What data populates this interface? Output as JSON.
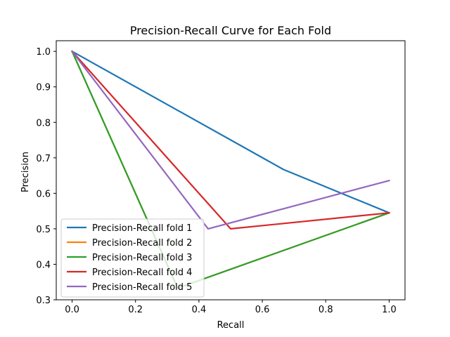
{
  "chart_data": {
    "type": "line",
    "title": "Precision-Recall Curve for Each Fold",
    "xlabel": "Recall",
    "ylabel": "Precision",
    "xlim": [
      -0.05,
      1.05
    ],
    "ylim": [
      0.3,
      1.03
    ],
    "xticks": [
      0.0,
      0.2,
      0.4,
      0.6,
      0.8,
      1.0
    ],
    "xtick_labels": [
      "0.0",
      "0.2",
      "0.4",
      "0.6",
      "0.8",
      "1.0"
    ],
    "yticks": [
      0.3,
      0.4,
      0.5,
      0.6,
      0.7,
      0.8,
      0.9,
      1.0
    ],
    "ytick_labels": [
      "0.3",
      "0.4",
      "0.5",
      "0.6",
      "0.7",
      "0.8",
      "0.9",
      "1.0"
    ],
    "grid": false,
    "legend_position": "lower-left",
    "series": [
      {
        "name": "Precision-Recall fold 1",
        "color": "#1f77b4",
        "x": [
          0.0,
          0.667,
          1.0
        ],
        "y": [
          1.0,
          0.667,
          0.545
        ]
      },
      {
        "name": "Precision-Recall fold 2",
        "color": "#ff7f0e",
        "x": [
          0.0,
          0.333,
          1.0
        ],
        "y": [
          1.0,
          0.333,
          0.545
        ]
      },
      {
        "name": "Precision-Recall fold 3",
        "color": "#2ca02c",
        "x": [
          0.0,
          0.333,
          1.0
        ],
        "y": [
          1.0,
          0.333,
          0.545
        ]
      },
      {
        "name": "Precision-Recall fold 4",
        "color": "#d62728",
        "x": [
          0.0,
          0.5,
          1.0
        ],
        "y": [
          1.0,
          0.5,
          0.545
        ]
      },
      {
        "name": "Precision-Recall fold 5",
        "color": "#9467bd",
        "x": [
          0.0,
          0.429,
          1.0
        ],
        "y": [
          1.0,
          0.5,
          0.636
        ]
      }
    ]
  }
}
